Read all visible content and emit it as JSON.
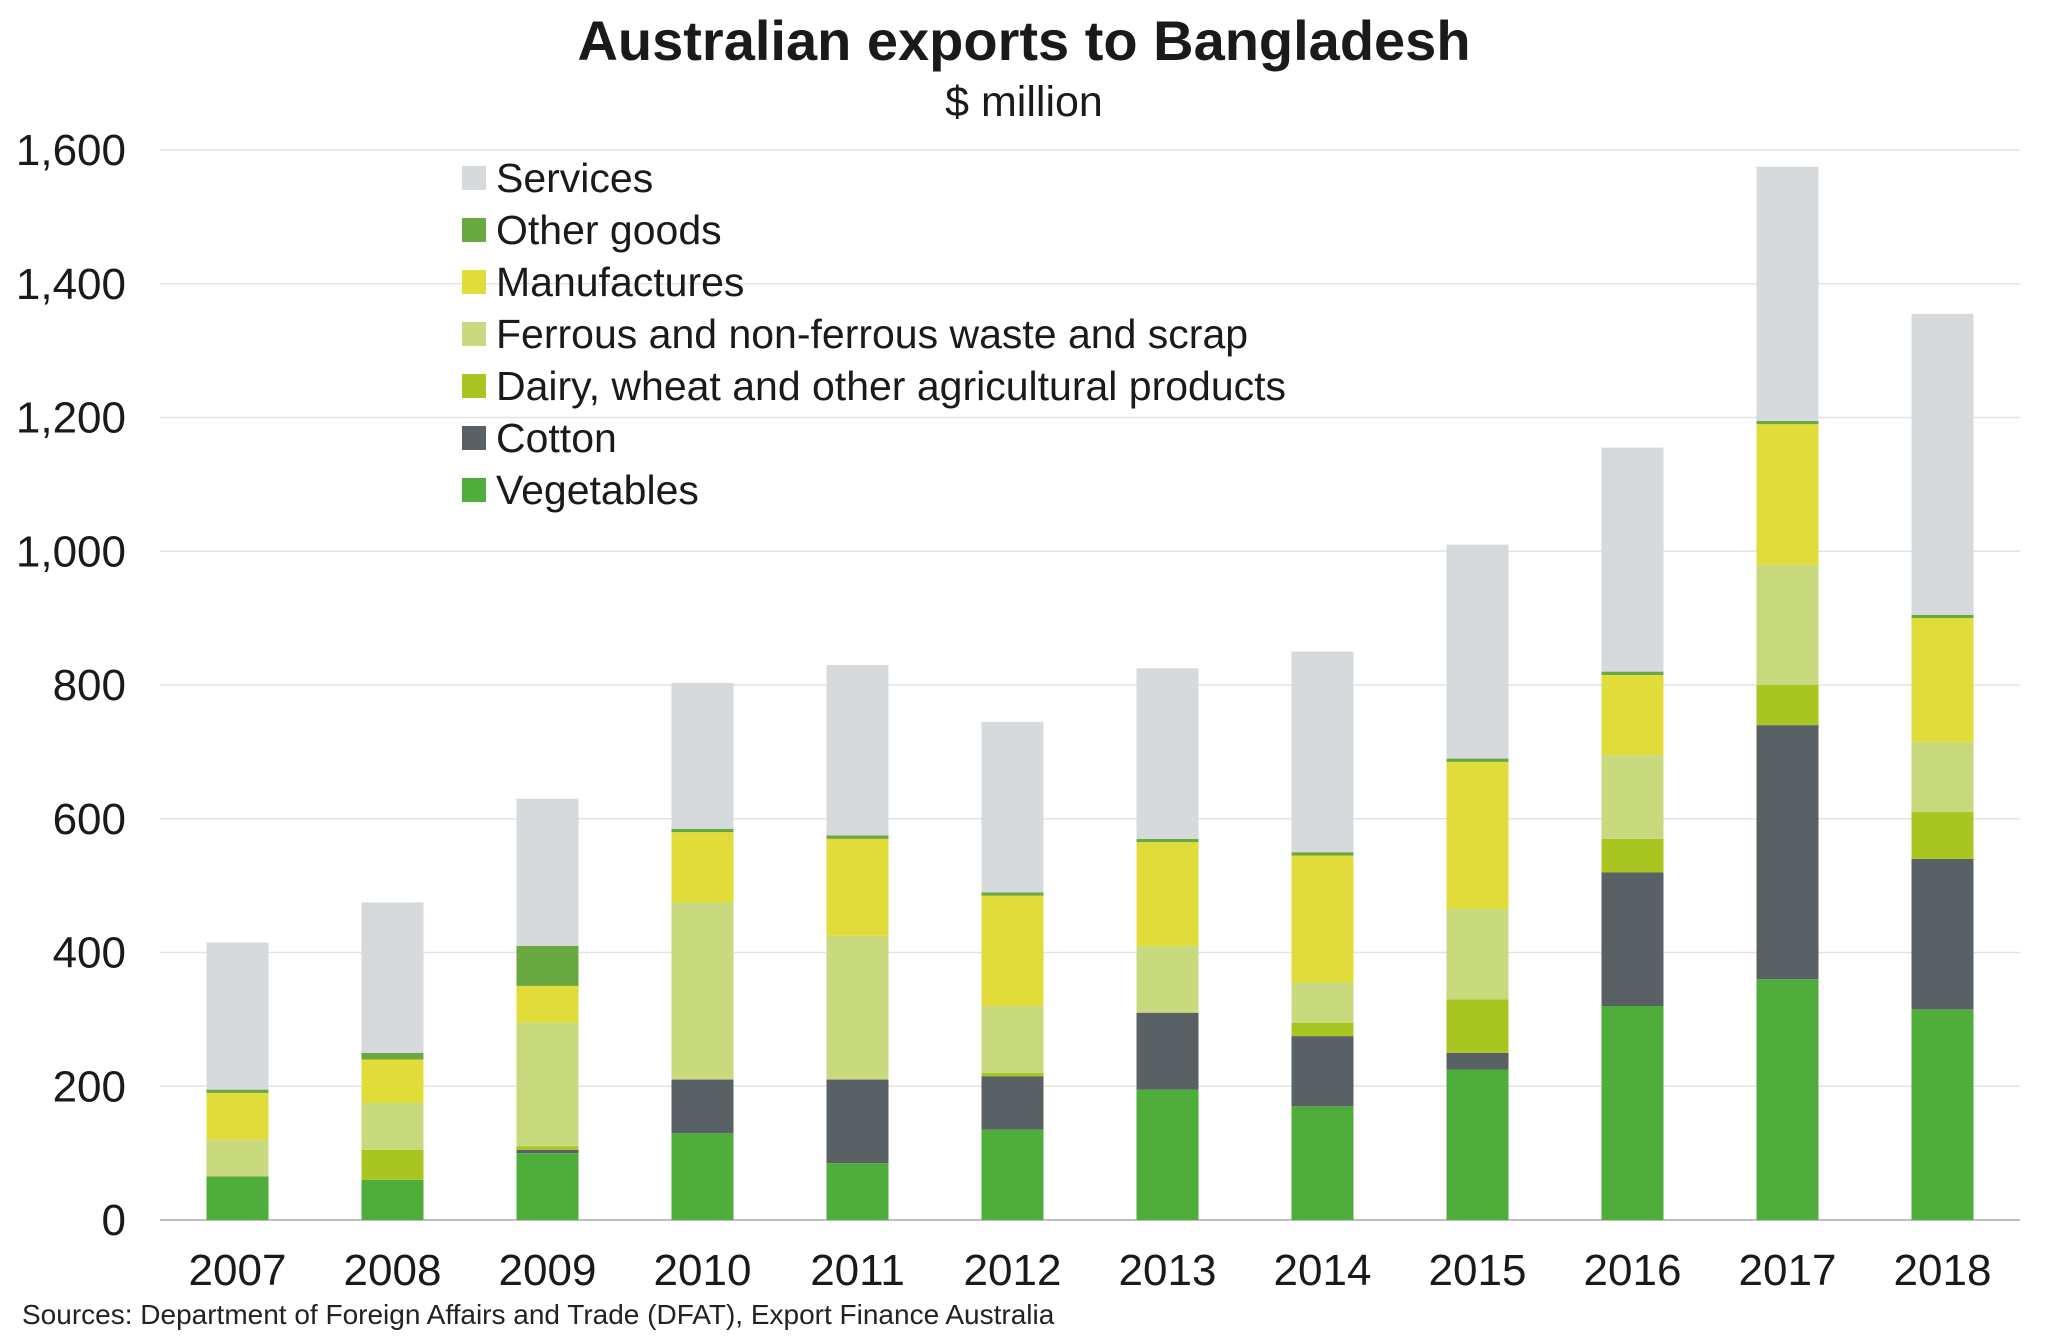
{
  "title": "Australian exports to Bangladesh",
  "subtitle": "$ million",
  "source": "Sources: Department of Foreign Affairs and Trade (DFAT), Export Finance Australia",
  "chart_data": {
    "type": "bar",
    "stacked": true,
    "title": "Australian exports to Bangladesh",
    "subtitle": "$ million",
    "xlabel": "",
    "ylabel": "",
    "ylim": [
      0,
      1600
    ],
    "yticks": [
      0,
      200,
      400,
      600,
      800,
      1000,
      1200,
      1400,
      1600
    ],
    "ytick_labels": [
      "0",
      "200",
      "400",
      "600",
      "800",
      "1,000",
      "1,200",
      "1,400",
      "1,600"
    ],
    "grid": true,
    "legend_position": "top-left",
    "categories": [
      "2007",
      "2008",
      "2009",
      "2010",
      "2011",
      "2012",
      "2013",
      "2014",
      "2015",
      "2016",
      "2017",
      "2018"
    ],
    "series": [
      {
        "name": "Vegetables",
        "color": "#4fae3b",
        "values": [
          65,
          60,
          100,
          130,
          85,
          135,
          195,
          170,
          225,
          320,
          360,
          315
        ]
      },
      {
        "name": "Cotton",
        "color": "#5a6165",
        "values": [
          0,
          0,
          5,
          80,
          125,
          80,
          115,
          105,
          25,
          200,
          380,
          225
        ]
      },
      {
        "name": "Dairy, wheat and other agricultural products",
        "color": "#a8c520",
        "values": [
          0,
          45,
          5,
          0,
          0,
          5,
          0,
          20,
          80,
          50,
          60,
          70
        ]
      },
      {
        "name": "Ferrous and non-ferrous waste and scrap",
        "color": "#c9d97e",
        "values": [
          55,
          70,
          185,
          265,
          215,
          100,
          100,
          60,
          135,
          125,
          180,
          105
        ]
      },
      {
        "name": "Manufactures",
        "color": "#e2dc3a",
        "values": [
          70,
          65,
          55,
          105,
          145,
          165,
          155,
          190,
          220,
          120,
          210,
          185
        ]
      },
      {
        "name": "Other goods",
        "color": "#6aa841",
        "values": [
          5,
          10,
          60,
          5,
          5,
          5,
          5,
          5,
          5,
          5,
          5,
          5
        ]
      },
      {
        "name": "Services",
        "color": "#d7dadd",
        "values": [
          220,
          225,
          220,
          218,
          255,
          255,
          255,
          300,
          320,
          335,
          380,
          450
        ]
      }
    ]
  }
}
